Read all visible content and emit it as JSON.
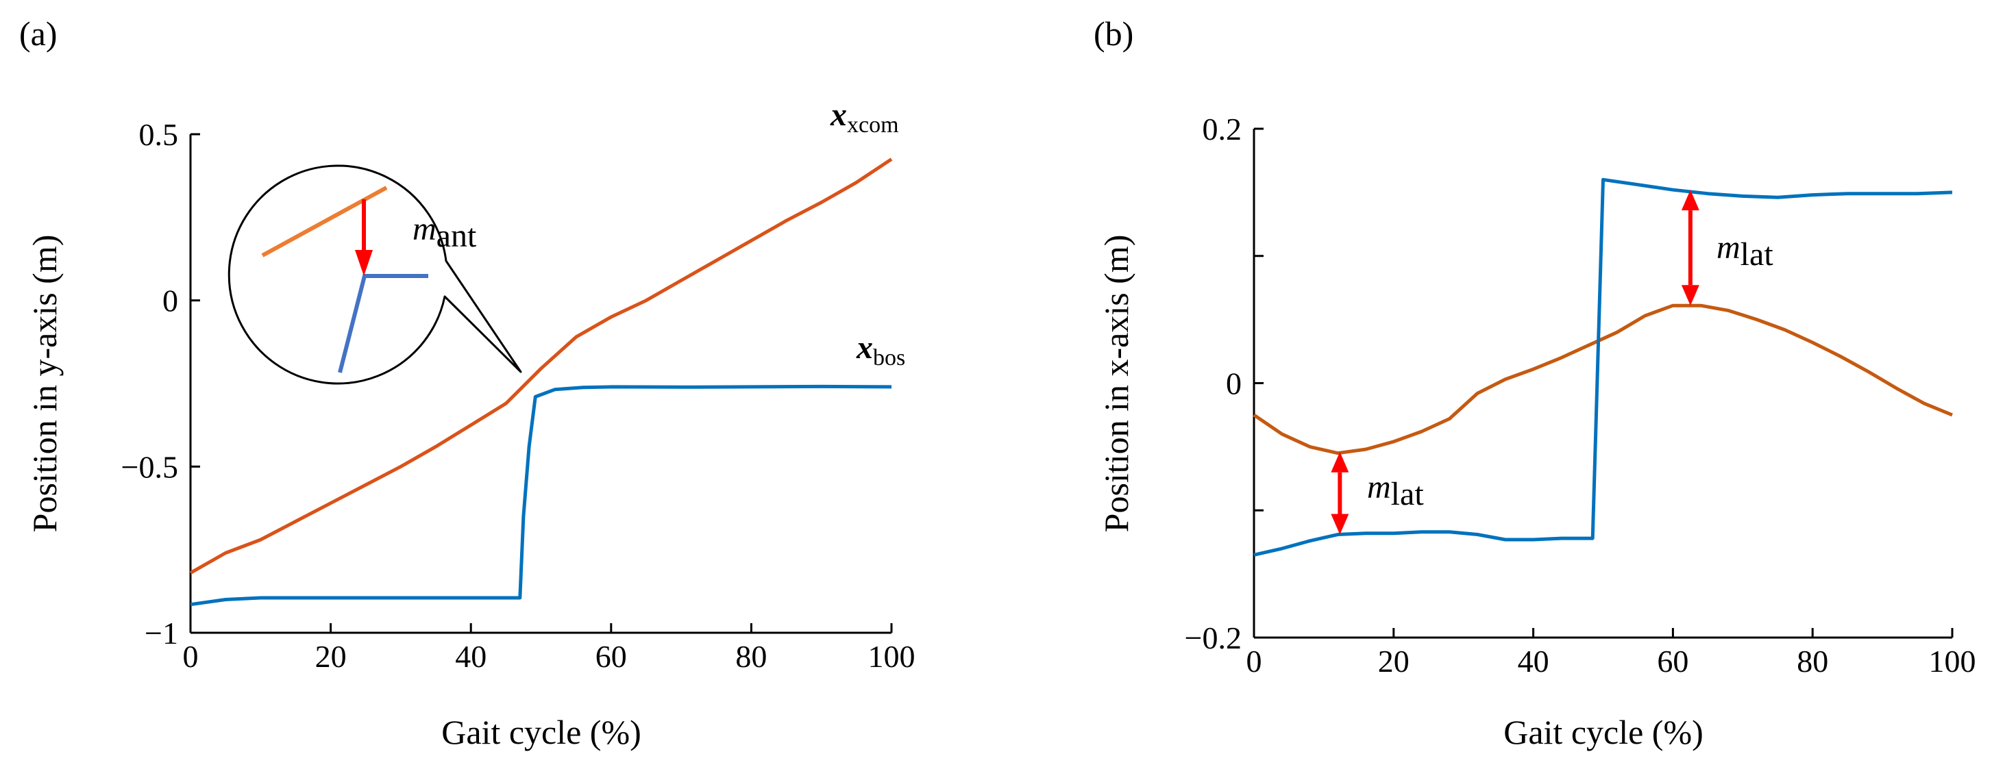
{
  "chart_data": [
    {
      "type": "line",
      "panel_label": "(a)",
      "xlabel": "Gait cycle (%)",
      "ylabel": "Position in y-axis (m)",
      "xlim": [
        0,
        100
      ],
      "ylim": [
        -1,
        0.5
      ],
      "xticks": [
        0,
        20,
        40,
        60,
        80,
        100
      ],
      "xtick_labels": [
        "0",
        "20",
        "40",
        "60",
        "80",
        "100"
      ],
      "yticks": [
        -1,
        -0.5,
        0,
        0.5
      ],
      "ytick_labels": [
        "−1",
        "−0.5",
        "0",
        "0.5"
      ],
      "grid": false,
      "series": [
        {
          "name": "x_xcom",
          "color": "#D95319",
          "x": [
            0,
            5,
            10,
            15,
            20,
            25,
            30,
            35,
            40,
            45,
            50,
            55,
            60,
            65,
            70,
            75,
            80,
            85,
            90,
            95,
            100
          ],
          "y": [
            -0.82,
            -0.76,
            -0.72,
            -0.665,
            -0.61,
            -0.555,
            -0.5,
            -0.44,
            -0.375,
            -0.31,
            -0.205,
            -0.11,
            -0.05,
            0.0,
            0.06,
            0.12,
            0.18,
            0.24,
            0.295,
            0.355,
            0.425
          ]
        },
        {
          "name": "x_bos",
          "color": "#0072BD",
          "x": [
            0,
            5,
            10,
            20,
            30,
            40,
            47,
            47.5,
            48.3,
            49.2,
            52,
            56,
            60,
            70,
            80,
            90,
            100
          ],
          "y": [
            -0.915,
            -0.9,
            -0.895,
            -0.895,
            -0.895,
            -0.895,
            -0.895,
            -0.65,
            -0.44,
            -0.29,
            -0.268,
            -0.262,
            -0.26,
            -0.261,
            -0.26,
            -0.259,
            -0.26
          ]
        }
      ],
      "labels": {
        "xcom_main": "x",
        "xcom_sub": "xcom",
        "bos_main": "x",
        "bos_sub": "bos",
        "margin_main": "m",
        "margin_sub": "ant"
      },
      "inset_colors": {
        "xcom": "#ED7D31",
        "bos": "#4472C4",
        "arrow": "#FF0000"
      }
    },
    {
      "type": "line",
      "panel_label": "(b)",
      "xlabel": "Gait cycle (%)",
      "ylabel": "Position in x-axis (m)",
      "xlim": [
        0,
        100
      ],
      "ylim": [
        -0.2,
        0.2
      ],
      "xticks": [
        0,
        20,
        40,
        60,
        80,
        100
      ],
      "xtick_labels": [
        "0",
        "20",
        "40",
        "60",
        "80",
        "100"
      ],
      "yticks": [
        -0.2,
        -0.1,
        0,
        0.1,
        0.2
      ],
      "ytick_labels": [
        "−0.2",
        "",
        "0",
        "",
        "0.2"
      ],
      "grid": false,
      "series": [
        {
          "name": "x_xcom",
          "color": "#C55A11",
          "x": [
            0,
            4,
            8,
            12,
            16,
            20,
            24,
            28,
            32,
            36,
            40,
            44,
            48,
            52,
            56,
            60,
            64,
            68,
            72,
            76,
            80,
            84,
            88,
            92,
            96,
            100
          ],
          "y": [
            -0.025,
            -0.04,
            -0.05,
            -0.055,
            -0.052,
            -0.046,
            -0.038,
            -0.028,
            -0.008,
            0.003,
            0.011,
            0.02,
            0.03,
            0.04,
            0.053,
            0.061,
            0.061,
            0.057,
            0.05,
            0.042,
            0.032,
            0.021,
            0.009,
            -0.004,
            -0.016,
            -0.025
          ]
        },
        {
          "name": "x_bos",
          "color": "#0072BD",
          "x": [
            0,
            4,
            8,
            12,
            16,
            20,
            24,
            28,
            32,
            36,
            40,
            44,
            48.5,
            50,
            55,
            60,
            65,
            70,
            75,
            80,
            85,
            90,
            95,
            100
          ],
          "y": [
            -0.135,
            -0.13,
            -0.124,
            -0.119,
            -0.118,
            -0.118,
            -0.117,
            -0.117,
            -0.119,
            -0.123,
            -0.123,
            -0.122,
            -0.122,
            0.16,
            0.156,
            0.152,
            0.149,
            0.147,
            0.146,
            0.148,
            0.149,
            0.149,
            0.149,
            0.15
          ]
        }
      ],
      "margins": [
        {
          "x": 12.3,
          "y_from": -0.054,
          "y_to": -0.119
        },
        {
          "x": 62.5,
          "y_from": 0.061,
          "y_to": 0.152
        }
      ],
      "labels": {
        "margin_main": "m",
        "margin_sub": "lat"
      },
      "arrow_color": "#FF0000"
    }
  ]
}
